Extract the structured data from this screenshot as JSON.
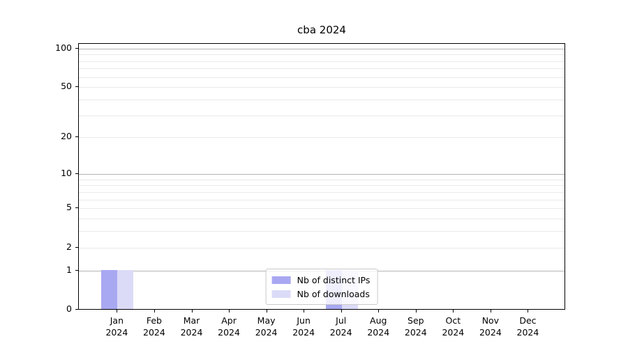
{
  "chart_data": {
    "type": "bar",
    "title": "cba 2024",
    "categories": [
      "Jan",
      "Feb",
      "Mar",
      "Apr",
      "May",
      "Jun",
      "Jul",
      "Aug",
      "Sep",
      "Oct",
      "Nov",
      "Dec"
    ],
    "year": "2024",
    "series": [
      {
        "name": "Nb of distinct IPs",
        "color": "#a8a8f2",
        "values": [
          1,
          0,
          0,
          0,
          0,
          0,
          1,
          0,
          0,
          0,
          0,
          0
        ]
      },
      {
        "name": "Nb of downloads",
        "color": "#dbdbf8",
        "values": [
          1,
          0,
          0,
          0,
          0,
          0,
          1,
          0,
          0,
          0,
          0,
          0
        ]
      }
    ],
    "y_axis": {
      "scale": "log10(1+v)",
      "ticks": [
        100,
        50,
        20,
        10,
        5,
        2,
        1,
        0
      ],
      "minor_gridlines": [
        3,
        4,
        6,
        7,
        8,
        9,
        30,
        40,
        60,
        70,
        80,
        90
      ],
      "major_gridlines": [
        1,
        10,
        100
      ],
      "top_value": 110
    },
    "legend": {
      "position": "lower center"
    },
    "grid": true,
    "colors": {
      "major_grid": "#b4b4b4",
      "minor_grid": "#e9e9e9",
      "spine": "#000000"
    }
  }
}
